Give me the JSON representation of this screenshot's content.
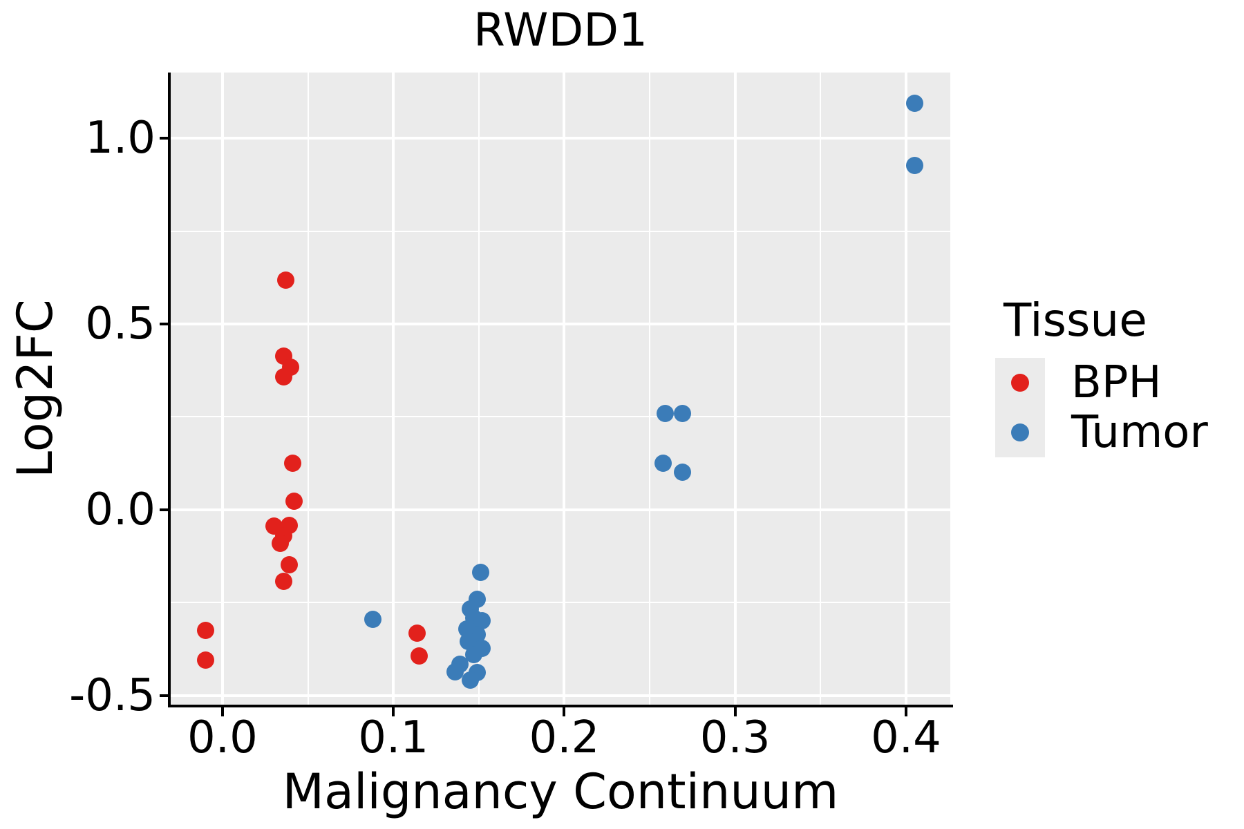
{
  "figure": {
    "background": "#FFFFFF"
  },
  "colors": {
    "panel_background": "#EBEBEB",
    "gridline": "#FFFFFF",
    "spine": "#000000",
    "text": "#000000",
    "legend_key_background": "#EBEBEB",
    "bph_red": "#E2211C",
    "tumor_blue": "#3B7CB8"
  },
  "chart_data": {
    "type": "scatter",
    "title": "RWDD1",
    "xlabel": "Malignancy Continuum",
    "ylabel": "Log2FC",
    "legend_title": "Tissue",
    "legend_position": "right",
    "grid": "on",
    "xlim": [
      -0.0303,
      0.4259
    ],
    "ylim": [
      -0.5242,
      1.1766
    ],
    "x_ticks": {
      "values": [
        0.0,
        0.1,
        0.2,
        0.3,
        0.4
      ],
      "labels": [
        "0.0",
        "0.1",
        "0.2",
        "0.3",
        "0.4"
      ],
      "minor": [
        0.05,
        0.15,
        0.25,
        0.35
      ]
    },
    "y_ticks": {
      "values": [
        1.0,
        0.5,
        0.0,
        -0.5
      ],
      "labels": [
        "1.0",
        "0.5",
        "0.0",
        "-0.5"
      ],
      "minor": [
        0.75,
        0.25,
        -0.25
      ]
    },
    "series": [
      {
        "name": "BPH",
        "color": "#E2211C",
        "points": [
          [
            -0.01,
            -0.325
          ],
          [
            -0.01,
            -0.405
          ],
          [
            0.037,
            0.618
          ],
          [
            0.036,
            0.414
          ],
          [
            0.04,
            0.383
          ],
          [
            0.036,
            0.357
          ],
          [
            0.041,
            0.125
          ],
          [
            0.042,
            0.024
          ],
          [
            0.03,
            -0.043
          ],
          [
            0.039,
            -0.041
          ],
          [
            0.036,
            -0.069
          ],
          [
            0.034,
            -0.091
          ],
          [
            0.039,
            -0.147
          ],
          [
            0.036,
            -0.193
          ],
          [
            0.114,
            -0.331
          ],
          [
            0.115,
            -0.394
          ]
        ]
      },
      {
        "name": "Tumor",
        "color": "#3B7CB8",
        "points": [
          [
            0.088,
            -0.294
          ],
          [
            0.151,
            -0.169
          ],
          [
            0.149,
            -0.24
          ],
          [
            0.145,
            -0.267
          ],
          [
            0.147,
            -0.29
          ],
          [
            0.152,
            -0.299
          ],
          [
            0.143,
            -0.321
          ],
          [
            0.149,
            -0.336
          ],
          [
            0.144,
            -0.354
          ],
          [
            0.152,
            -0.373
          ],
          [
            0.147,
            -0.389
          ],
          [
            0.139,
            -0.416
          ],
          [
            0.136,
            -0.435
          ],
          [
            0.149,
            -0.438
          ],
          [
            0.145,
            -0.459
          ],
          [
            0.259,
            0.26
          ],
          [
            0.269,
            0.26
          ],
          [
            0.258,
            0.126
          ],
          [
            0.269,
            0.102
          ],
          [
            0.405,
            1.094
          ],
          [
            0.405,
            0.927
          ]
        ]
      }
    ]
  }
}
